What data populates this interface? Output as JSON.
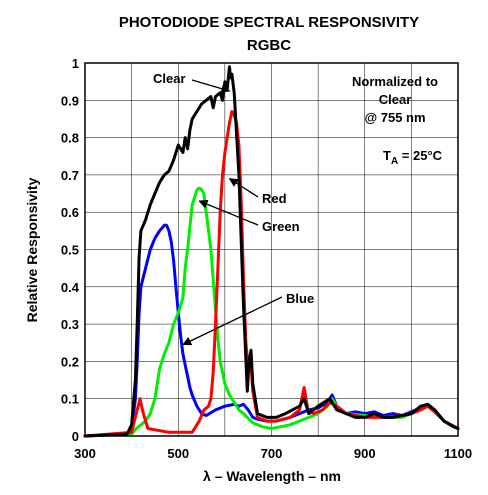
{
  "chart_data": {
    "type": "line",
    "title": "PHOTODIODE SPECTRAL RESPONSIVITY",
    "subtitle": "RGBC",
    "xlabel": "λ – Wavelength – nm",
    "ylabel": "Relative Responsivity",
    "xlim": [
      300,
      1100
    ],
    "ylim": [
      0,
      1
    ],
    "xticks": [
      "300",
      "500",
      "700",
      "900",
      "1100"
    ],
    "yticks": [
      "0",
      "0.1",
      "0.2",
      "0.3",
      "0.4",
      "0.5",
      "0.6",
      "0.7",
      "0.8",
      "0.9",
      "1"
    ],
    "grid": true,
    "note_lines": [
      "Normalized to",
      "Clear",
      "@ 755 nm"
    ],
    "temperature_label": {
      "main": "T",
      "sub": "A",
      "rest": " = 25°C"
    },
    "series": [
      {
        "name": "Clear",
        "color": "#000000",
        "label_text": "Clear",
        "points": [
          [
            300,
            0
          ],
          [
            390,
            0.005
          ],
          [
            400,
            0.03
          ],
          [
            408,
            0.15
          ],
          [
            412,
            0.3
          ],
          [
            416,
            0.48
          ],
          [
            420,
            0.55
          ],
          [
            430,
            0.58
          ],
          [
            440,
            0.62
          ],
          [
            450,
            0.65
          ],
          [
            460,
            0.68
          ],
          [
            470,
            0.7
          ],
          [
            480,
            0.71
          ],
          [
            490,
            0.74
          ],
          [
            500,
            0.78
          ],
          [
            510,
            0.76
          ],
          [
            515,
            0.8
          ],
          [
            520,
            0.77
          ],
          [
            525,
            0.82
          ],
          [
            530,
            0.85
          ],
          [
            540,
            0.87
          ],
          [
            550,
            0.89
          ],
          [
            560,
            0.9
          ],
          [
            570,
            0.91
          ],
          [
            575,
            0.88
          ],
          [
            580,
            0.91
          ],
          [
            590,
            0.92
          ],
          [
            595,
            0.9
          ],
          [
            600,
            0.95
          ],
          [
            605,
            0.93
          ],
          [
            610,
            0.99
          ],
          [
            612,
            0.96
          ],
          [
            615,
            0.97
          ],
          [
            620,
            0.92
          ],
          [
            630,
            0.7
          ],
          [
            640,
            0.35
          ],
          [
            648,
            0.12
          ],
          [
            652,
            0.2
          ],
          [
            656,
            0.23
          ],
          [
            660,
            0.14
          ],
          [
            670,
            0.06
          ],
          [
            690,
            0.05
          ],
          [
            710,
            0.05
          ],
          [
            730,
            0.06
          ],
          [
            760,
            0.08
          ],
          [
            770,
            0.1
          ],
          [
            780,
            0.06
          ],
          [
            800,
            0.08
          ],
          [
            825,
            0.1
          ],
          [
            840,
            0.07
          ],
          [
            860,
            0.06
          ],
          [
            880,
            0.05
          ],
          [
            900,
            0.05
          ],
          [
            920,
            0.06
          ],
          [
            940,
            0.05
          ],
          [
            960,
            0.05
          ],
          [
            980,
            0.055
          ],
          [
            1000,
            0.06
          ],
          [
            1020,
            0.08
          ],
          [
            1035,
            0.085
          ],
          [
            1050,
            0.07
          ],
          [
            1070,
            0.04
          ],
          [
            1090,
            0.025
          ],
          [
            1100,
            0.02
          ]
        ]
      },
      {
        "name": "Red",
        "color": "#ff0000",
        "label_text": "Red",
        "points": [
          [
            300,
            0
          ],
          [
            400,
            0.01
          ],
          [
            410,
            0.06
          ],
          [
            418,
            0.1
          ],
          [
            425,
            0.06
          ],
          [
            435,
            0.02
          ],
          [
            480,
            0.01
          ],
          [
            530,
            0.01
          ],
          [
            545,
            0.04
          ],
          [
            555,
            0.07
          ],
          [
            565,
            0.08
          ],
          [
            570,
            0.1
          ],
          [
            575,
            0.17
          ],
          [
            580,
            0.3
          ],
          [
            585,
            0.45
          ],
          [
            590,
            0.6
          ],
          [
            595,
            0.7
          ],
          [
            600,
            0.76
          ],
          [
            605,
            0.8
          ],
          [
            610,
            0.84
          ],
          [
            615,
            0.87
          ],
          [
            620,
            0.86
          ],
          [
            625,
            0.84
          ],
          [
            630,
            0.78
          ],
          [
            635,
            0.63
          ],
          [
            640,
            0.42
          ],
          [
            645,
            0.25
          ],
          [
            650,
            0.18
          ],
          [
            655,
            0.21
          ],
          [
            660,
            0.12
          ],
          [
            670,
            0.05
          ],
          [
            690,
            0.04
          ],
          [
            710,
            0.04
          ],
          [
            740,
            0.05
          ],
          [
            760,
            0.07
          ],
          [
            770,
            0.13
          ],
          [
            778,
            0.07
          ],
          [
            790,
            0.06
          ],
          [
            810,
            0.07
          ],
          [
            825,
            0.09
          ],
          [
            840,
            0.08
          ],
          [
            860,
            0.06
          ],
          [
            900,
            0.05
          ],
          [
            940,
            0.05
          ],
          [
            980,
            0.055
          ],
          [
            1000,
            0.06
          ],
          [
            1020,
            0.07
          ],
          [
            1035,
            0.08
          ],
          [
            1050,
            0.065
          ],
          [
            1070,
            0.04
          ],
          [
            1100,
            0.02
          ]
        ]
      },
      {
        "name": "Green",
        "color": "#00ee00",
        "label_text": "Green",
        "points": [
          [
            300,
            0
          ],
          [
            400,
            0.005
          ],
          [
            410,
            0.02
          ],
          [
            420,
            0.03
          ],
          [
            430,
            0.04
          ],
          [
            440,
            0.06
          ],
          [
            450,
            0.1
          ],
          [
            460,
            0.18
          ],
          [
            470,
            0.22
          ],
          [
            480,
            0.25
          ],
          [
            490,
            0.3
          ],
          [
            500,
            0.33
          ],
          [
            510,
            0.37
          ],
          [
            515,
            0.45
          ],
          [
            520,
            0.5
          ],
          [
            525,
            0.56
          ],
          [
            530,
            0.62
          ],
          [
            535,
            0.64
          ],
          [
            540,
            0.66
          ],
          [
            545,
            0.665
          ],
          [
            550,
            0.66
          ],
          [
            555,
            0.65
          ],
          [
            560,
            0.6
          ],
          [
            565,
            0.55
          ],
          [
            570,
            0.5
          ],
          [
            575,
            0.42
          ],
          [
            580,
            0.34
          ],
          [
            585,
            0.26
          ],
          [
            590,
            0.2
          ],
          [
            600,
            0.14
          ],
          [
            610,
            0.11
          ],
          [
            620,
            0.09
          ],
          [
            630,
            0.07
          ],
          [
            640,
            0.06
          ],
          [
            660,
            0.035
          ],
          [
            680,
            0.025
          ],
          [
            700,
            0.02
          ],
          [
            720,
            0.025
          ],
          [
            740,
            0.03
          ],
          [
            760,
            0.04
          ],
          [
            780,
            0.05
          ],
          [
            800,
            0.06
          ],
          [
            820,
            0.08
          ],
          [
            830,
            0.1
          ],
          [
            840,
            0.08
          ],
          [
            860,
            0.06
          ],
          [
            900,
            0.055
          ],
          [
            940,
            0.05
          ],
          [
            980,
            0.05
          ],
          [
            1000,
            0.06
          ],
          [
            1020,
            0.07
          ],
          [
            1035,
            0.085
          ],
          [
            1050,
            0.065
          ],
          [
            1070,
            0.04
          ],
          [
            1100,
            0.02
          ]
        ]
      },
      {
        "name": "Blue",
        "color": "#0000ff",
        "label_text": "Blue",
        "points": [
          [
            300,
            0
          ],
          [
            390,
            0.005
          ],
          [
            400,
            0.02
          ],
          [
            408,
            0.1
          ],
          [
            412,
            0.2
          ],
          [
            416,
            0.33
          ],
          [
            420,
            0.4
          ],
          [
            430,
            0.45
          ],
          [
            440,
            0.5
          ],
          [
            450,
            0.53
          ],
          [
            460,
            0.55
          ],
          [
            470,
            0.565
          ],
          [
            475,
            0.565
          ],
          [
            480,
            0.55
          ],
          [
            485,
            0.52
          ],
          [
            490,
            0.47
          ],
          [
            495,
            0.4
          ],
          [
            500,
            0.33
          ],
          [
            505,
            0.27
          ],
          [
            510,
            0.22
          ],
          [
            515,
            0.19
          ],
          [
            520,
            0.16
          ],
          [
            525,
            0.13
          ],
          [
            530,
            0.11
          ],
          [
            540,
            0.08
          ],
          [
            550,
            0.06
          ],
          [
            560,
            0.055
          ],
          [
            580,
            0.07
          ],
          [
            600,
            0.08
          ],
          [
            620,
            0.085
          ],
          [
            630,
            0.08
          ],
          [
            640,
            0.085
          ],
          [
            650,
            0.07
          ],
          [
            660,
            0.05
          ],
          [
            670,
            0.045
          ],
          [
            690,
            0.04
          ],
          [
            710,
            0.04
          ],
          [
            740,
            0.05
          ],
          [
            760,
            0.06
          ],
          [
            780,
            0.07
          ],
          [
            800,
            0.075
          ],
          [
            820,
            0.09
          ],
          [
            830,
            0.11
          ],
          [
            840,
            0.08
          ],
          [
            860,
            0.06
          ],
          [
            880,
            0.065
          ],
          [
            900,
            0.06
          ],
          [
            920,
            0.065
          ],
          [
            940,
            0.055
          ],
          [
            960,
            0.06
          ],
          [
            980,
            0.055
          ],
          [
            1000,
            0.065
          ],
          [
            1020,
            0.075
          ],
          [
            1035,
            0.085
          ],
          [
            1050,
            0.07
          ],
          [
            1070,
            0.04
          ],
          [
            1100,
            0.02
          ]
        ]
      }
    ],
    "annotations": [
      {
        "series": "Clear",
        "text": "Clear",
        "arrow_at": [
          610,
          0.925
        ],
        "label_anchor": "left"
      },
      {
        "series": "Red",
        "text": "Red",
        "arrow_at": [
          610,
          0.69
        ],
        "label_anchor": "below"
      },
      {
        "series": "Green",
        "text": "Green",
        "arrow_at": [
          545,
          0.63
        ],
        "label_anchor": "below"
      },
      {
        "series": "Blue",
        "text": "Blue",
        "arrow_at": [
          510,
          0.245
        ],
        "label_anchor": "above"
      }
    ]
  }
}
